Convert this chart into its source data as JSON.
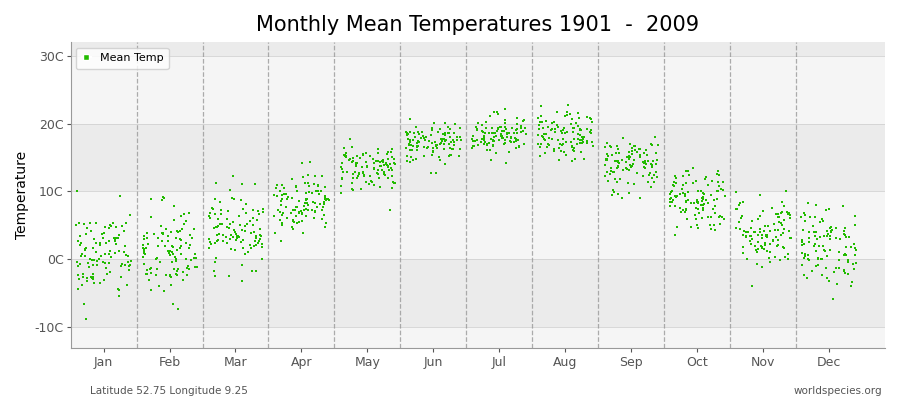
{
  "title": "Monthly Mean Temperatures 1901  -  2009",
  "ylabel": "Temperature",
  "ytick_labels": [
    "-10C",
    "0C",
    "10C",
    "20C",
    "30C"
  ],
  "ytick_values": [
    -10,
    0,
    10,
    20,
    30
  ],
  "ylim": [
    -13,
    32
  ],
  "xlim": [
    0.5,
    12.85
  ],
  "months": [
    "Jan",
    "Feb",
    "Mar",
    "Apr",
    "May",
    "Jun",
    "Jul",
    "Aug",
    "Sep",
    "Oct",
    "Nov",
    "Dec"
  ],
  "bg_color": "#ffffff",
  "band_colors": [
    "#f0f0f0",
    "#e8e8e8"
  ],
  "dot_color": "#22bb00",
  "dash_color": "#999999",
  "title_fontsize": 15,
  "label_fontsize": 10,
  "tick_fontsize": 9,
  "footnote_left": "Latitude 52.75 Longitude 9.25",
  "footnote_right": "worldspecies.org",
  "legend_label": "Mean Temp",
  "years": 109,
  "monthly_means": [
    0.5,
    0.8,
    4.5,
    8.5,
    13.5,
    17.0,
    18.5,
    18.0,
    14.0,
    9.0,
    4.0,
    2.0
  ],
  "monthly_stds": [
    3.5,
    3.8,
    2.8,
    2.2,
    1.8,
    1.5,
    1.5,
    1.8,
    2.2,
    2.5,
    2.8,
    3.0
  ]
}
